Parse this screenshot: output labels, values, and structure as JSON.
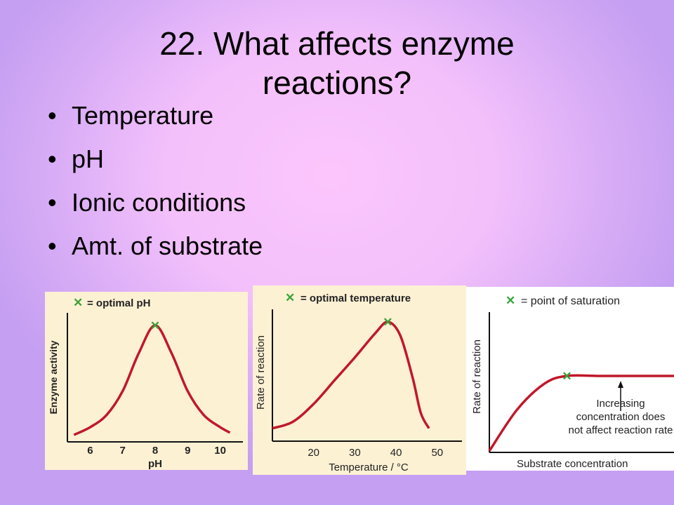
{
  "slide": {
    "title": "22. What affects enzyme reactions?",
    "bullets": [
      "Temperature",
      "pH",
      "Ionic conditions",
      "Amt. of substrate"
    ]
  },
  "chart_data": [
    {
      "type": "line",
      "legend": "= optimal pH",
      "xlabel": "pH",
      "ylabel": "Enzyme activity",
      "x_ticks": [
        6,
        7,
        8,
        9,
        10
      ],
      "xlim": [
        5.3,
        10.7
      ],
      "series": [
        {
          "x": [
            5.5,
            6,
            6.5,
            7,
            7.5,
            8,
            8.5,
            9,
            9.5,
            10,
            10.3
          ],
          "y": [
            0.0,
            0.07,
            0.18,
            0.4,
            0.75,
            1.0,
            0.75,
            0.4,
            0.18,
            0.07,
            0.02
          ]
        }
      ],
      "optimum": {
        "x": 8,
        "y": 1.0
      },
      "background": "#fdf1d4",
      "line_color": "#c0182a"
    },
    {
      "type": "line",
      "legend": "= optimal temperature",
      "xlabel": "Temperature / °C",
      "ylabel": "Rate of reaction",
      "x_ticks": [
        20,
        30,
        40,
        50
      ],
      "xlim": [
        10,
        56
      ],
      "series": [
        {
          "x": [
            10,
            15,
            20,
            25,
            30,
            35,
            38,
            41,
            44,
            46,
            48
          ],
          "y": [
            0.04,
            0.1,
            0.26,
            0.47,
            0.68,
            0.9,
            1.0,
            0.88,
            0.5,
            0.18,
            0.04
          ]
        }
      ],
      "optimum": {
        "x": 38,
        "y": 1.0
      },
      "background": "#fdf1d4",
      "line_color": "#c0182a"
    },
    {
      "type": "line",
      "legend": "= point of saturation",
      "xlabel": "Substrate concentration",
      "ylabel": "Rate of reaction",
      "annotation": [
        "Increasing",
        "concentration does",
        "not affect reaction rate"
      ],
      "series": [
        {
          "x": [
            0,
            0.15,
            0.3,
            0.42,
            0.6,
            0.8,
            1.0
          ],
          "y": [
            0.0,
            0.55,
            0.9,
            1.0,
            1.0,
            1.0,
            1.0
          ]
        }
      ],
      "saturation": {
        "x": 0.42,
        "y": 1.0
      },
      "background": "#ffffff",
      "line_color": "#c0182a"
    }
  ]
}
